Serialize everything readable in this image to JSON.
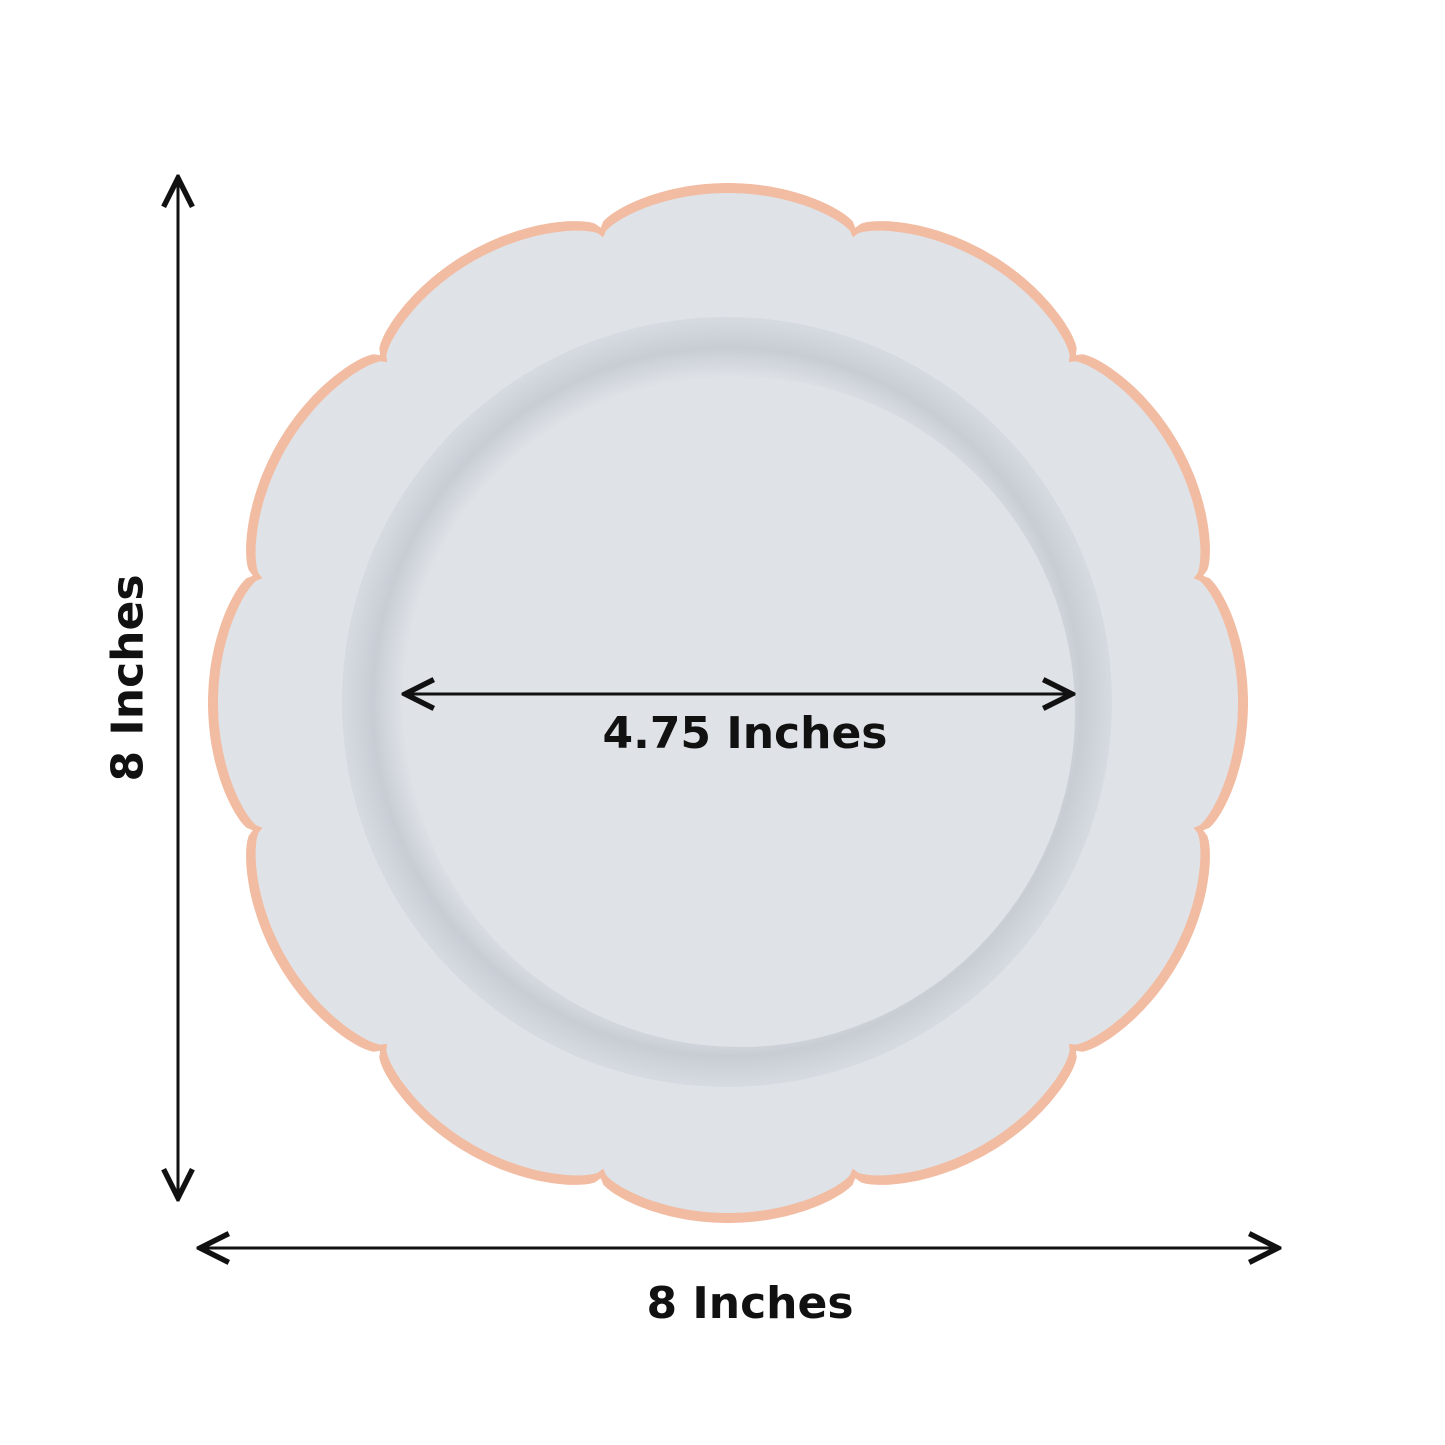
{
  "dimensions": {
    "height_label": "8 Inches",
    "width_label": "8 Inches",
    "inner_label": "4.75 Inches"
  },
  "colors": {
    "plate": "#dfe3e8",
    "plate_well_shadow": "#c9ced5",
    "rim": "#f2bca2",
    "arrow": "#111111"
  }
}
